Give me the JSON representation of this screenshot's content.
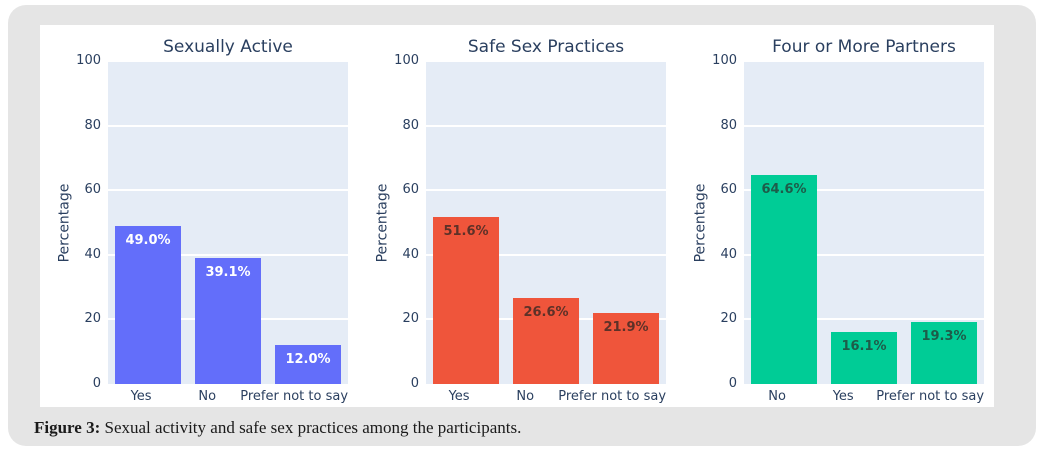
{
  "caption": {
    "prefix": "Figure 3:",
    "text": " Sexual activity and safe sex practices among the participants."
  },
  "colors": {
    "panel_bg": "#e5e5e5",
    "card_bg": "#ffffff",
    "plot_bg": "#e5ecf6",
    "grid": "#ffffff",
    "axis_text": "#2a3f5f"
  },
  "chart_data": [
    {
      "type": "bar",
      "title": "Sexually Active",
      "categories": [
        "Yes",
        "No",
        "Prefer not to say"
      ],
      "values": [
        49.0,
        39.1,
        12.0
      ],
      "bar_labels": [
        "49.0%",
        "39.1%",
        "12.0%"
      ],
      "bar_color": "#636efa",
      "label_color": "#ffffff",
      "ylabel": "Percentage",
      "ylim": [
        0,
        100
      ],
      "yticks": [
        0,
        20,
        40,
        60,
        80,
        100
      ],
      "grid": "on",
      "legend": "none"
    },
    {
      "type": "bar",
      "title": "Safe Sex Practices",
      "categories": [
        "Yes",
        "No",
        "Prefer not to say"
      ],
      "values": [
        51.6,
        26.6,
        21.9
      ],
      "bar_labels": [
        "51.6%",
        "26.6%",
        "21.9%"
      ],
      "bar_color": "#ef553b",
      "label_color": "#5d3128",
      "ylabel": "Percentage",
      "ylim": [
        0,
        100
      ],
      "yticks": [
        0,
        20,
        40,
        60,
        80,
        100
      ],
      "grid": "on",
      "legend": "none"
    },
    {
      "type": "bar",
      "title": "Four or More Partners",
      "categories": [
        "No",
        "Yes",
        "Prefer not to say"
      ],
      "values": [
        64.6,
        16.1,
        19.3
      ],
      "bar_labels": [
        "64.6%",
        "16.1%",
        "19.3%"
      ],
      "bar_color": "#00cc96",
      "label_color": "#1d5c49",
      "ylabel": "Percentage",
      "ylim": [
        0,
        100
      ],
      "yticks": [
        0,
        20,
        40,
        60,
        80,
        100
      ],
      "grid": "on",
      "legend": "none"
    }
  ]
}
